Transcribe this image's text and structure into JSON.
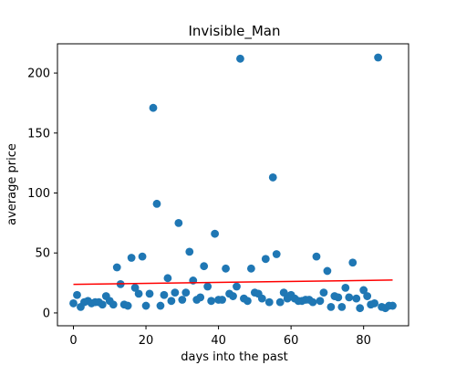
{
  "chart_data": {
    "type": "scatter",
    "title": "Invisible_Man",
    "xlabel": "days into the past",
    "ylabel": "average price",
    "xlim": [
      -4.4,
      92.4
    ],
    "ylim": [
      -10.7,
      224.4
    ],
    "xticks": [
      0,
      20,
      40,
      60,
      80
    ],
    "yticks": [
      0,
      50,
      100,
      150,
      200
    ],
    "grid": false,
    "colors": {
      "points": "#1f77b4",
      "trend": "#ff0000"
    },
    "series": [
      {
        "type": "scatter",
        "x": [
          0,
          1,
          2,
          3,
          4,
          5,
          6,
          7,
          8,
          9,
          10,
          11,
          12,
          13,
          14,
          15,
          16,
          17,
          18,
          19,
          20,
          21,
          22,
          23,
          24,
          25,
          26,
          27,
          28,
          29,
          30,
          31,
          32,
          33,
          34,
          35,
          36,
          37,
          38,
          39,
          40,
          41,
          42,
          43,
          44,
          45,
          46,
          47,
          48,
          49,
          50,
          51,
          52,
          53,
          54,
          55,
          56,
          57,
          58,
          59,
          60,
          61,
          62,
          63,
          64,
          65,
          66,
          67,
          68,
          69,
          70,
          71,
          72,
          73,
          74,
          75,
          76,
          77,
          78,
          79,
          80,
          81,
          82,
          83,
          84,
          85,
          86,
          87,
          88
        ],
        "y": [
          8,
          15,
          5,
          9,
          10,
          8,
          9,
          9,
          7,
          14,
          10,
          7,
          38,
          24,
          7,
          6,
          46,
          21,
          16,
          47,
          6,
          16,
          171,
          91,
          6,
          15,
          29,
          10,
          17,
          75,
          11,
          17,
          51,
          27,
          11,
          13,
          39,
          22,
          10,
          66,
          11,
          11,
          37,
          16,
          14,
          22,
          212,
          12,
          10,
          37,
          17,
          16,
          12,
          45,
          9,
          113,
          49,
          9,
          17,
          12,
          15,
          12,
          10,
          10,
          11,
          11,
          9,
          47,
          10,
          17,
          35,
          5,
          14,
          13,
          5,
          21,
          13,
          42,
          12,
          4,
          19,
          14,
          7,
          8,
          213,
          5,
          4,
          6,
          6
        ]
      },
      {
        "type": "line",
        "x": [
          0,
          88
        ],
        "y": [
          23.8,
          27.4
        ]
      }
    ]
  }
}
